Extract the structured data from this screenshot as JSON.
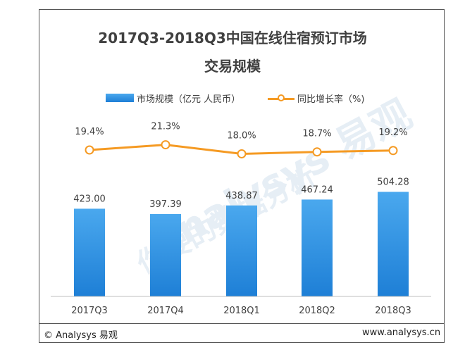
{
  "chart_data": {
    "type": "bar",
    "title_line1": "2017Q3-2018Q3中国在线住宿预订市场",
    "title_line2": "交易规模",
    "categories": [
      "2017Q3",
      "2017Q4",
      "2018Q1",
      "2018Q2",
      "2018Q3"
    ],
    "series": [
      {
        "name": "市场规模（亿元 人民币）",
        "type": "bar",
        "values": [
          423.0,
          397.39,
          438.87,
          467.24,
          504.28
        ],
        "labels": [
          "423.00",
          "397.39",
          "438.87",
          "467.24",
          "504.28"
        ],
        "color": "#2e8ddc"
      },
      {
        "name": "同比增长率（%)",
        "type": "line",
        "values": [
          19.4,
          21.3,
          18.0,
          18.7,
          19.2
        ],
        "labels": [
          "19.4%",
          "21.3%",
          "18.0%",
          "18.7%",
          "19.2%"
        ],
        "color": "#f59a23"
      }
    ],
    "legend_position": "top-center",
    "grid": false
  },
  "footer": {
    "left": "© Analysys 易观",
    "right": "www.analysys.cn"
  },
  "watermark": {
    "text1": "Analysys 易观",
    "text2": "你要的数据分析"
  },
  "colors": {
    "bar_top": "#4aa8ee",
    "bar_bottom": "#1e7fd6",
    "line": "#f59a23"
  }
}
